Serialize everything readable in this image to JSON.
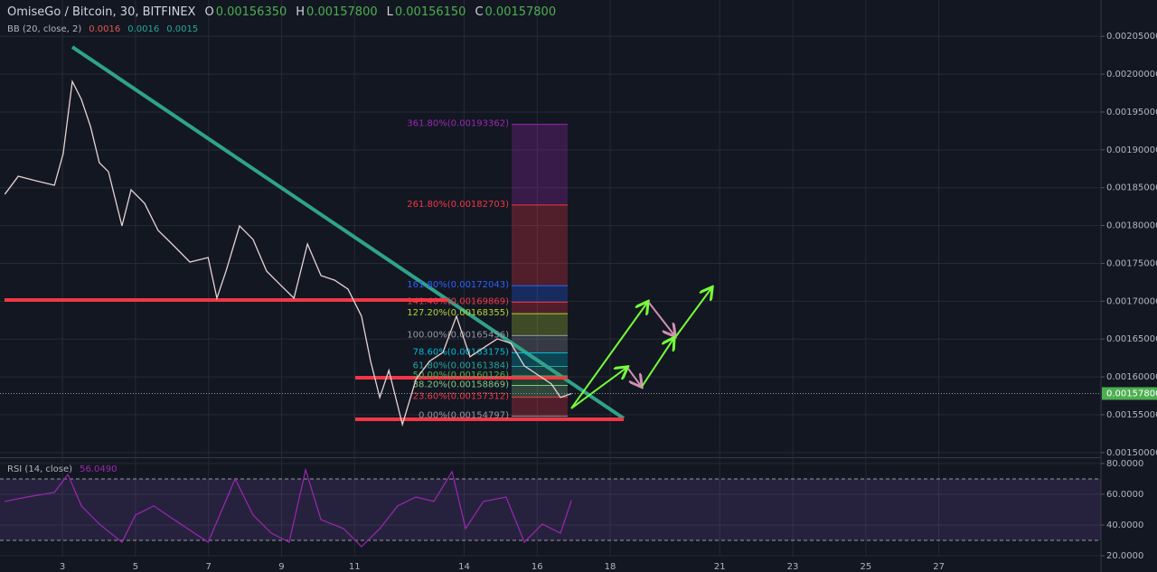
{
  "chart_data": [
    {
      "type": "line",
      "title": "OmiseGo / Bitcoin, 30, BITFINEX",
      "ohlc": [
        {
          "label": "O",
          "value": "0.00156350"
        },
        {
          "label": "H",
          "value": "0.00157800"
        },
        {
          "label": "L",
          "value": "0.00156150"
        },
        {
          "label": "C",
          "value": "0.00157800"
        }
      ],
      "indicator": {
        "label": "BB (20, close, 2)",
        "values": [
          "0.0016",
          "0.0016",
          "0.0015"
        ],
        "colors": [
          "#e0584f",
          "#26a69a",
          "#26a69a"
        ]
      },
      "color": "#e6d3d3",
      "x": [
        1.42,
        1.79,
        2.28,
        2.78,
        3.02,
        3.27,
        3.52,
        3.77,
        4.01,
        4.26,
        4.63,
        4.88,
        5.25,
        5.62,
        6.0,
        6.49,
        6.99,
        7.23,
        7.48,
        7.85,
        8.22,
        8.59,
        8.96,
        9.34,
        9.71,
        10.08,
        10.45,
        10.82,
        11.19,
        11.44,
        11.69,
        11.94,
        12.31,
        12.68,
        13.05,
        13.42,
        13.79,
        14.16,
        14.53,
        14.91,
        15.28,
        15.65,
        16.02,
        16.39,
        16.64,
        16.94
      ],
      "values": [
        0.0018412,
        0.0018651,
        0.0018591,
        0.0018532,
        0.0018949,
        0.0019904,
        0.0019665,
        0.0019307,
        0.001883,
        0.0018711,
        0.0017995,
        0.0018472,
        0.0018293,
        0.0017935,
        0.0017756,
        0.0017517,
        0.0017577,
        0.001704,
        0.0017398,
        0.0017995,
        0.0017816,
        0.0017398,
        0.0017219,
        0.001704,
        0.0017756,
        0.0017338,
        0.0017279,
        0.001716,
        0.0016802,
        0.0016205,
        0.0015728,
        0.0016086,
        0.001537,
        0.0015966,
        0.0016205,
        0.0016324,
        0.0016802,
        0.0016265,
        0.0016384,
        0.0016503,
        0.0016444,
        0.0016145,
        0.0016026,
        0.0015907,
        0.0015728,
        0.001578
      ],
      "xlim": [
        1.29,
        31.44
      ],
      "xticks": [
        3,
        5,
        7,
        9,
        11,
        14,
        16,
        18,
        21,
        23,
        25,
        27
      ],
      "ylim": [
        0.001495,
        0.002098
      ],
      "yticks": [
        {
          "value": 0.0015,
          "label": "0.00150000"
        },
        {
          "value": 0.00155,
          "label": "0.00155000"
        },
        {
          "value": 0.0016,
          "label": "0.00160000"
        },
        {
          "value": 0.00165,
          "label": "0.00165000"
        },
        {
          "value": 0.0017,
          "label": "0.00170000"
        },
        {
          "value": 0.00175,
          "label": "0.00175000"
        },
        {
          "value": 0.0018,
          "label": "0.00180000"
        },
        {
          "value": 0.00185,
          "label": "0.00185000"
        },
        {
          "value": 0.0019,
          "label": "0.00190000"
        },
        {
          "value": 0.00195,
          "label": "0.00195000"
        },
        {
          "value": 0.002,
          "label": "0.00200000"
        },
        {
          "value": 0.00205,
          "label": "0.00205000"
        }
      ],
      "grid": true,
      "last_price": {
        "value": 0.001578,
        "label": "0.00157800",
        "color": "#4caf50"
      },
      "fib_levels": [
        {
          "label": "361.80%(0.00193362)",
          "value": 0.00193362,
          "color": "#9c27b0"
        },
        {
          "label": "261.80%(0.00182703)",
          "value": 0.00182703,
          "color": "#f23645"
        },
        {
          "label": "161.80%(0.00172043)",
          "value": 0.00172043,
          "color": "#2962ff"
        },
        {
          "label": "141.40%(0.00169869)",
          "value": 0.00169869,
          "color": "#f23645"
        },
        {
          "label": "127.20%(0.00168355)",
          "value": 0.00168355,
          "color": "#b5d334"
        },
        {
          "label": "100.00%(0.00165456)",
          "value": 0.00165456,
          "color": "#9598a1"
        },
        {
          "label": "78.60%(0.00163175)",
          "value": 0.00163175,
          "color": "#00bcd4"
        },
        {
          "label": "61.80%(0.00161384)",
          "value": 0.00161384,
          "color": "#26a69a"
        },
        {
          "label": "50.00%(0.00160126)",
          "value": 0.00160126,
          "color": "#4caf50"
        },
        {
          "label": "38.20%(0.00158869)",
          "value": 0.00158869,
          "color": "#81c784"
        },
        {
          "label": "23.60%(0.00157312)",
          "value": 0.00157312,
          "color": "#f23645"
        },
        {
          "label": "0.00%(0.00154797)",
          "value": 0.00154797,
          "color": "#9598a1"
        }
      ]
    },
    {
      "type": "line",
      "title": "RSI (14, close)",
      "current": {
        "value": 56.049,
        "label": "56.0490"
      },
      "color": "#9c27b0",
      "x": [
        1.42,
        2.03,
        2.78,
        3.15,
        3.52,
        4.01,
        4.63,
        5.0,
        5.5,
        6.24,
        6.99,
        7.73,
        8.22,
        8.72,
        9.21,
        9.66,
        10.08,
        10.7,
        11.19,
        11.69,
        12.18,
        12.68,
        13.17,
        13.67,
        14.04,
        14.53,
        15.15,
        15.65,
        16.14,
        16.64,
        16.94
      ],
      "values": [
        55.3,
        58.2,
        61.2,
        72.9,
        52.4,
        40.6,
        28.8,
        46.5,
        52.4,
        40.6,
        28.8,
        70,
        46.5,
        34.7,
        28.8,
        75.9,
        43.5,
        37.6,
        25.9,
        37.6,
        52.4,
        58.2,
        55.3,
        74.7,
        37.6,
        55.3,
        58.2,
        28.8,
        40.6,
        34.7,
        56.049
      ],
      "xlim": [
        1.29,
        31.44
      ],
      "ylim": [
        20,
        82.9
      ],
      "yticks": [
        {
          "value": 20,
          "label": "20.0000"
        },
        {
          "value": 40,
          "label": "40.0000"
        },
        {
          "value": 60,
          "label": "60.0000"
        },
        {
          "value": 80,
          "label": "80.0000"
        }
      ],
      "bands": [
        30,
        70
      ]
    }
  ]
}
